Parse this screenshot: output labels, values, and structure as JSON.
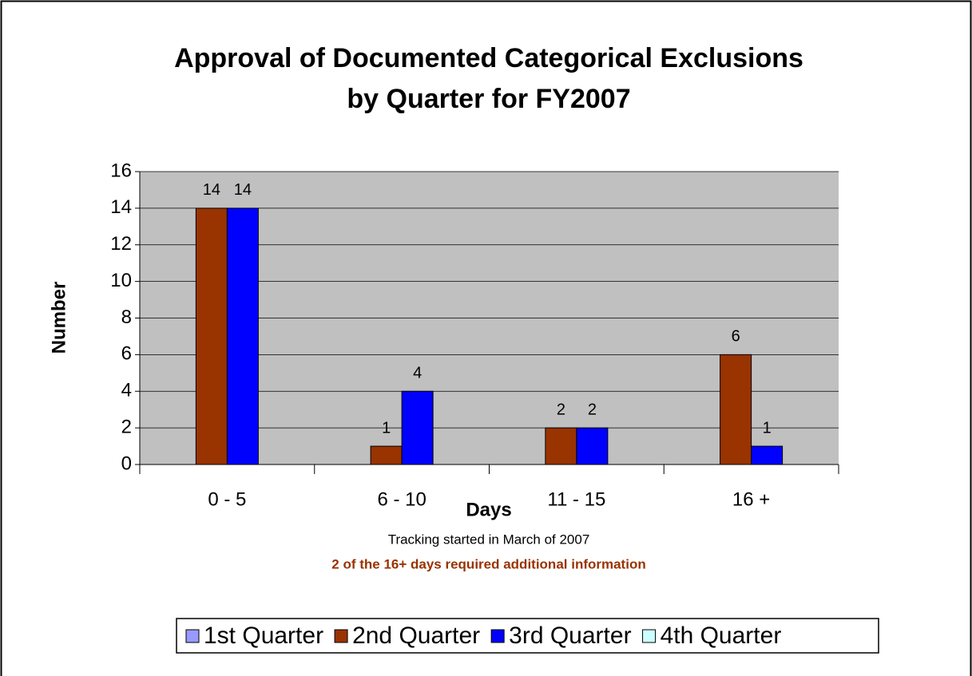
{
  "chart_data": {
    "type": "bar",
    "title": [
      "Approval of Documented Categorical Exclusions",
      "by Quarter for FY2007"
    ],
    "xlabel": "Days",
    "ylabel": "Number",
    "annotations": [
      "Tracking started in March of 2007",
      "2 of the 16+ days required additional information"
    ],
    "categories": [
      "0 - 5",
      "6 - 10",
      "11 - 15",
      "16 +"
    ],
    "series": [
      {
        "name": "1st Quarter",
        "color": "#9999ff",
        "values": [
          null,
          null,
          null,
          null
        ]
      },
      {
        "name": "2nd Quarter",
        "color": "#993300",
        "values": [
          14,
          1,
          2,
          6
        ]
      },
      {
        "name": "3rd Quarter",
        "color": "#0000ff",
        "values": [
          14,
          4,
          2,
          1
        ]
      },
      {
        "name": "4th Quarter",
        "color": "#ccffff",
        "values": [
          null,
          null,
          null,
          null
        ]
      }
    ],
    "ylim": [
      0,
      16
    ],
    "yticks": [
      0,
      2,
      4,
      6,
      8,
      10,
      12,
      14,
      16
    ],
    "grid": true,
    "legend": "bottom"
  }
}
